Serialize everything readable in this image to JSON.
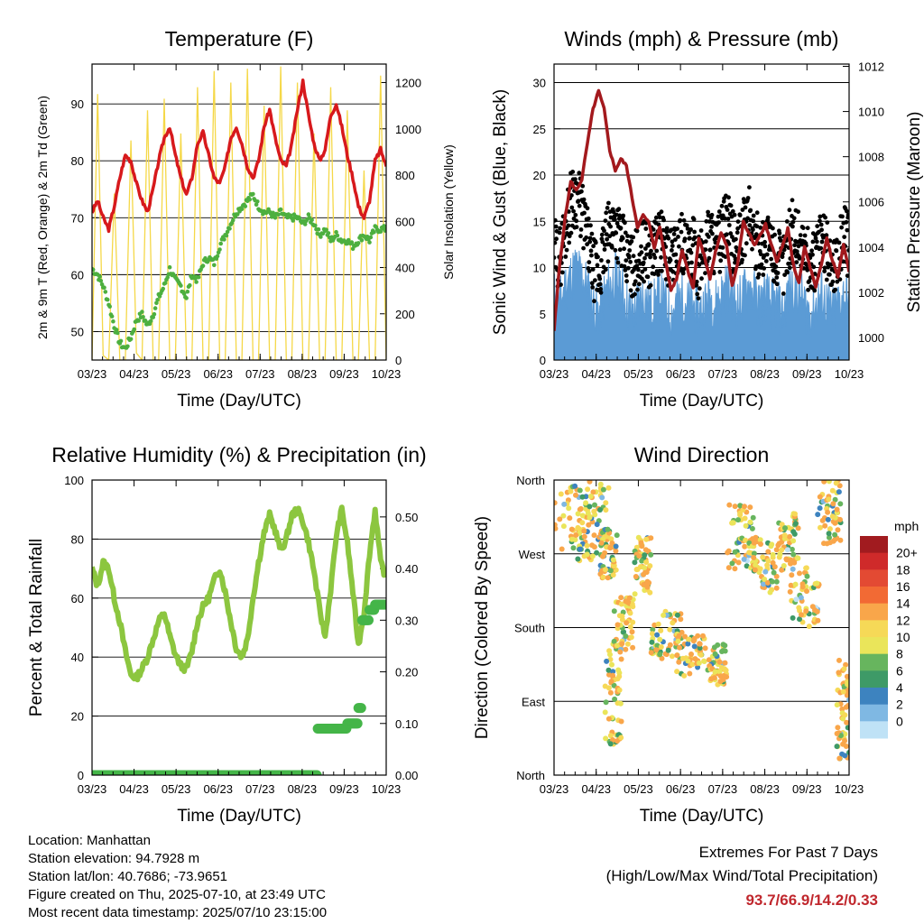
{
  "chart_data": [
    {
      "type": "line",
      "title": "Temperature (F)",
      "xlabel": "Time (Day/UTC)",
      "ylabel": "2m & 9m T (Red, Orange) & 2m Td (Green)",
      "y2label": "Solar Insolation (Yellow)",
      "x_ticks": [
        "03/23",
        "04/23",
        "05/23",
        "06/23",
        "07/23",
        "08/23",
        "09/23",
        "10/23"
      ],
      "ylim": [
        45,
        97
      ],
      "y_ticks": [
        50,
        60,
        70,
        80,
        90
      ],
      "y2lim": [
        0,
        1280
      ],
      "y2_ticks": [
        0,
        200,
        400,
        600,
        800,
        1000,
        1200
      ],
      "grid": true,
      "colors": {
        "temp": "#d7191c",
        "dewpoint": "#4daf3f",
        "solar": "#f5d848"
      },
      "series": [
        {
          "values": [
            71,
            73,
            70,
            68,
            72,
            77,
            81,
            80,
            76,
            73,
            71,
            75,
            80,
            84,
            86,
            81,
            77,
            74,
            77,
            83,
            85,
            81,
            77,
            76,
            79,
            84,
            86,
            83,
            79,
            77,
            80,
            86,
            89,
            84,
            80,
            79,
            83,
            89,
            94,
            88,
            83,
            80,
            82,
            88,
            90,
            86,
            81,
            77,
            72,
            70,
            73,
            80,
            82,
            79
          ]
        },
        {
          "values": [
            61,
            60,
            58,
            55,
            51,
            48,
            47,
            49,
            52,
            53,
            51,
            53,
            56,
            58,
            61,
            59,
            58,
            56,
            60,
            59,
            62,
            63,
            62,
            65,
            67,
            69,
            71,
            72,
            73,
            74,
            72,
            71,
            71,
            70,
            71,
            70,
            70,
            70,
            69,
            70,
            69,
            67,
            68,
            66,
            67,
            66,
            66,
            65,
            66,
            67,
            66,
            68,
            68,
            68
          ]
        },
        {
          "values": [
            0,
            1150,
            20,
            0,
            720,
            0,
            0,
            950,
            30,
            0,
            1080,
            0,
            0,
            1130,
            0,
            0,
            980,
            0,
            0,
            1180,
            0,
            0,
            1250,
            0,
            0,
            1200,
            0,
            0,
            1260,
            0,
            0,
            1100,
            0,
            0,
            1270,
            0,
            0,
            1200,
            0,
            0,
            980,
            0,
            0,
            1180,
            0,
            0,
            1080,
            0,
            0,
            820,
            0,
            0,
            1230,
            0
          ]
        }
      ]
    },
    {
      "type": "line",
      "title": "Winds (mph) & Pressure (mb)",
      "xlabel": "Time (Day/UTC)",
      "ylabel": "Sonic Wind & Gust (Blue, Black)",
      "y2label": "Station Pressure (Maroon)",
      "x_ticks": [
        "03/23",
        "04/23",
        "05/23",
        "06/23",
        "07/23",
        "08/23",
        "09/23",
        "10/23"
      ],
      "ylim": [
        0,
        32
      ],
      "y_ticks": [
        0,
        5,
        10,
        15,
        20,
        25,
        30
      ],
      "y2lim": [
        999.0,
        1012.1
      ],
      "y2_ticks": [
        1000,
        1002,
        1004,
        1006,
        1008,
        1010,
        1012
      ],
      "grid": true,
      "colors": {
        "wind": "#5b9bd5",
        "gust": "#000000",
        "pressure": "#a3191d"
      },
      "series": [
        {
          "values": [
            7,
            6,
            8,
            9,
            10,
            9,
            8,
            6,
            5,
            7,
            8,
            9,
            8,
            6,
            5,
            6,
            7,
            6,
            6,
            7,
            6,
            5,
            6,
            7,
            6,
            6,
            5,
            6,
            7,
            6,
            7,
            8,
            7,
            6,
            7,
            8,
            7,
            6,
            7,
            6,
            6,
            5,
            7,
            8,
            7,
            6,
            5,
            6,
            7,
            6,
            5,
            6,
            7,
            6
          ]
        },
        {
          "values": [
            12,
            11,
            14,
            17,
            18,
            16,
            13,
            10,
            9,
            12,
            14,
            15,
            13,
            11,
            10,
            11,
            12,
            11,
            12,
            13,
            12,
            11,
            12,
            13,
            11,
            12,
            10,
            12,
            14,
            12,
            13,
            15,
            13,
            12,
            14,
            16,
            13,
            12,
            13,
            12,
            11,
            10,
            13,
            14,
            13,
            12,
            10,
            11,
            13,
            12,
            10,
            11,
            14,
            12
          ]
        },
        {
          "values": [
            1000.3,
            1003.2,
            1005.3,
            1006.9,
            1006.5,
            1007.0,
            1008.6,
            1010.1,
            1010.9,
            1010.1,
            1008.3,
            1007.4,
            1007.9,
            1007.6,
            1006.2,
            1004.9,
            1005.4,
            1005.1,
            1004.0,
            1004.9,
            1003.4,
            1002.1,
            1002.6,
            1003.9,
            1003.0,
            1002.2,
            1004.4,
            1003.6,
            1002.6,
            1003.8,
            1004.6,
            1004.1,
            1002.3,
            1003.3,
            1005.1,
            1004.6,
            1004.1,
            1004.5,
            1005.0,
            1004.1,
            1003.4,
            1004.0,
            1004.8,
            1003.2,
            1002.4,
            1004.0,
            1003.1,
            1002.2,
            1003.2,
            1004.4,
            1003.4,
            1002.7,
            1004.1,
            1002.9
          ]
        }
      ]
    },
    {
      "type": "line",
      "title": "Relative Humidity (%) & Precipitation (in)",
      "xlabel": "Time (Day/UTC)",
      "ylabel": "Percent & Total Rainfall",
      "x_ticks": [
        "03/23",
        "04/23",
        "05/23",
        "06/23",
        "07/23",
        "08/23",
        "09/23",
        "10/23"
      ],
      "ylim": [
        0,
        100
      ],
      "y_ticks": [
        0,
        20,
        40,
        60,
        80,
        100
      ],
      "y2lim": [
        0,
        0.5714
      ],
      "y2_ticks": [
        0.0,
        0.1,
        0.2,
        0.3,
        0.4,
        0.5
      ],
      "grid": true,
      "colors": {
        "rh": "#8cc63f",
        "precip": "#44b548"
      },
      "series": [
        {
          "values": [
            70,
            64,
            72,
            70,
            60,
            52,
            42,
            34,
            33,
            36,
            40,
            46,
            52,
            55,
            47,
            41,
            37,
            36,
            42,
            52,
            57,
            60,
            66,
            70,
            62,
            52,
            43,
            40,
            46,
            60,
            72,
            82,
            88,
            83,
            76,
            80,
            88,
            90,
            86,
            79,
            69,
            56,
            47,
            63,
            81,
            90,
            79,
            62,
            44,
            55,
            75,
            90,
            72,
            67
          ]
        },
        {
          "values": [
            0,
            0,
            0,
            0,
            0,
            0,
            0,
            0,
            0,
            0,
            0,
            0,
            0,
            0,
            0,
            0,
            0,
            0,
            0,
            0,
            0,
            0,
            0,
            0,
            0,
            0,
            0,
            0,
            0,
            0,
            0,
            0,
            0,
            0,
            0,
            0,
            0,
            0,
            0,
            0,
            0,
            0.09,
            0.09,
            0.09,
            0.09,
            0.09,
            0.1,
            0.1,
            0.13,
            0.3,
            0.32,
            0.33,
            0.33,
            0.33
          ]
        }
      ]
    },
    {
      "type": "scatter",
      "title": "Wind Direction",
      "xlabel": "Time (Day/UTC)",
      "ylabel": "Direction (Colored By Speed)",
      "x_ticks": [
        "03/23",
        "04/23",
        "05/23",
        "06/23",
        "07/23",
        "08/23",
        "09/23",
        "10/23"
      ],
      "y_ticks": [
        "North",
        "East",
        "South",
        "West",
        "North"
      ],
      "grid": true,
      "colorbar": {
        "unit": "mph",
        "labels": [
          "20+",
          "18",
          "16",
          "14",
          "12",
          "10",
          "8",
          "6",
          "4",
          "2",
          "0"
        ],
        "colors": [
          "#a11b1f",
          "#cf2a2a",
          "#e34a33",
          "#f26a34",
          "#f9a64a",
          "#f6d957",
          "#eae55a",
          "#67b55e",
          "#3e9a67",
          "#3d83bf",
          "#7fb8e3",
          "#bfe2f6"
        ]
      },
      "clusters": [
        {
          "x": [
            0.0,
            2.0
          ],
          "y": [
            255,
            360
          ]
        },
        {
          "x": [
            1.0,
            2.6
          ],
          "y": [
            260,
            355
          ]
        },
        {
          "x": [
            2.2,
            3.0
          ],
          "y": [
            240,
            300
          ]
        },
        {
          "x": [
            2.4,
            3.2
          ],
          "y": [
            35,
            160
          ]
        },
        {
          "x": [
            2.8,
            3.8
          ],
          "y": [
            150,
            220
          ]
        },
        {
          "x": [
            3.8,
            4.6
          ],
          "y": [
            220,
            290
          ]
        },
        {
          "x": [
            4.6,
            6.1
          ],
          "y": [
            140,
            200
          ]
        },
        {
          "x": [
            5.8,
            7.2
          ],
          "y": [
            120,
            170
          ]
        },
        {
          "x": [
            7.3,
            8.2
          ],
          "y": [
            110,
            160
          ]
        },
        {
          "x": [
            8.2,
            9.5
          ],
          "y": [
            250,
            330
          ]
        },
        {
          "x": [
            9.4,
            10.6
          ],
          "y": [
            220,
            290
          ]
        },
        {
          "x": [
            10.6,
            11.6
          ],
          "y": [
            250,
            320
          ]
        },
        {
          "x": [
            11.2,
            12.6
          ],
          "y": [
            180,
            260
          ]
        },
        {
          "x": [
            12.5,
            13.6
          ],
          "y": [
            280,
            360
          ]
        },
        {
          "x": [
            13.4,
            14.0
          ],
          "y": [
            20,
            140
          ]
        }
      ]
    }
  ],
  "footer": {
    "location": "Location: Manhattan",
    "elevation": "Station elevation: 94.7928 m",
    "latlon": "Station lat/lon: 40.7686; -73.9651",
    "created": "Figure created on Thu, 2025-07-10, at 23:49 UTC",
    "recent": "Most recent data timestamp: 2025/07/10 23:15:00"
  },
  "extremes": {
    "title": "Extremes For Past 7 Days",
    "subtitle": "(High/Low/Max Wind/Total Precipitation)",
    "values": "93.7/66.9/14.2/0.33"
  }
}
